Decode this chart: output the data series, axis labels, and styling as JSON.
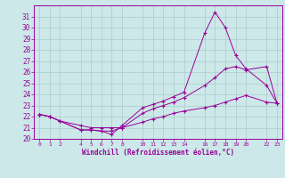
{
  "xlabel": "Windchill (Refroidissement éolien,°C)",
  "bg_color": "#cce8e8",
  "grid_color": "#aacccc",
  "line_color": "#990099",
  "ylim": [
    20,
    32
  ],
  "xlim": [
    -0.5,
    23.5
  ],
  "yticks": [
    20,
    21,
    22,
    23,
    24,
    25,
    26,
    27,
    28,
    29,
    30,
    31
  ],
  "xtick_positions": [
    0,
    1,
    2,
    4,
    5,
    6,
    7,
    8,
    10,
    11,
    12,
    13,
    14,
    16,
    17,
    18,
    19,
    20,
    22,
    23
  ],
  "xtick_labels": [
    "0",
    "1",
    "2",
    "4",
    "5",
    "6",
    "7",
    "8",
    "10",
    "11",
    "12",
    "13",
    "14",
    "16",
    "17",
    "18",
    "19",
    "20",
    "22",
    "23"
  ],
  "series": [
    {
      "x": [
        0,
        1,
        2,
        4,
        5,
        6,
        7,
        8,
        10,
        11,
        12,
        13,
        14,
        16,
        17,
        18,
        19,
        20,
        22,
        23
      ],
      "y": [
        22.2,
        22.0,
        21.6,
        20.8,
        20.8,
        20.7,
        20.4,
        21.2,
        22.8,
        23.1,
        23.4,
        23.8,
        24.2,
        29.5,
        31.4,
        30.0,
        27.5,
        26.3,
        24.8,
        23.2
      ]
    },
    {
      "x": [
        0,
        1,
        2,
        4,
        5,
        6,
        7,
        8,
        10,
        11,
        12,
        13,
        14,
        16,
        17,
        18,
        19,
        20,
        22,
        23
      ],
      "y": [
        22.2,
        22.0,
        21.6,
        20.8,
        20.8,
        20.7,
        20.7,
        21.0,
        22.3,
        22.7,
        23.0,
        23.3,
        23.7,
        24.8,
        25.5,
        26.3,
        26.5,
        26.2,
        26.5,
        23.2
      ]
    },
    {
      "x": [
        0,
        1,
        2,
        4,
        5,
        6,
        7,
        8,
        10,
        11,
        12,
        13,
        14,
        16,
        17,
        18,
        19,
        20,
        22,
        23
      ],
      "y": [
        22.2,
        22.0,
        21.6,
        21.2,
        21.0,
        21.0,
        21.0,
        21.0,
        21.5,
        21.8,
        22.0,
        22.3,
        22.5,
        22.8,
        23.0,
        23.3,
        23.6,
        23.9,
        23.3,
        23.2
      ]
    }
  ]
}
